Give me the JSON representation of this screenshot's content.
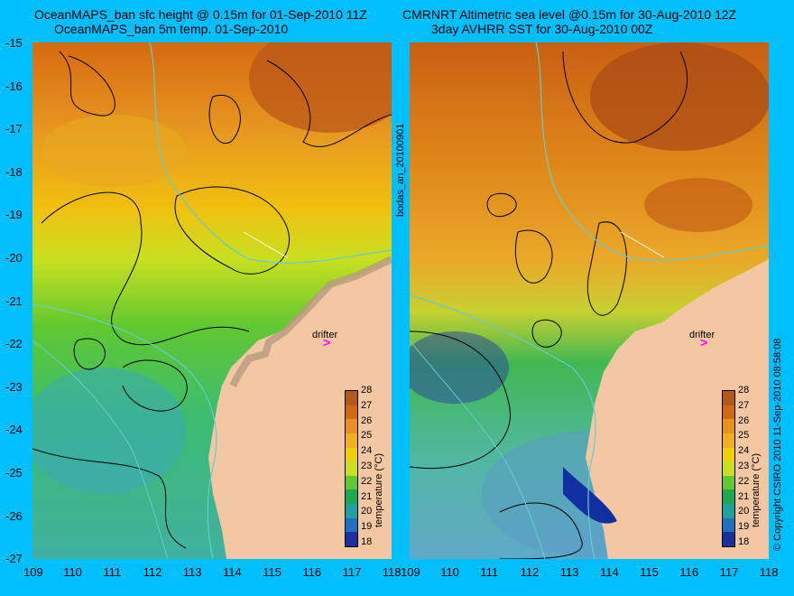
{
  "left_panel": {
    "title_1": "OceanMAPS_ban sfc height @ 0.15m for 01-Sep-2010 11Z",
    "title_2": "OceanMAPS_ban 5m temp. 01-Sep-2010",
    "drifter_label": "drifter",
    "drifter_mark": ">"
  },
  "right_panel": {
    "title_1": "CMRNRT Altimetric sea level  @0.15m  for 30-Aug-2010 12Z",
    "title_2": "3day AVHRR SST for 30-Aug-2010 00Z",
    "drifter_label": "drifter",
    "drifter_mark": ">"
  },
  "side_label": "bodas_an_20100901",
  "copyright": "© Copyright CSIRO 2010   11-Sep-2010 08:58:08",
  "y_ticks": [
    "-15",
    "-16",
    "-17",
    "-18",
    "-19",
    "-20",
    "-21",
    "-22",
    "-23",
    "-24",
    "-25",
    "-26",
    "-27"
  ],
  "x_ticks": [
    "109",
    "110",
    "111",
    "112",
    "113",
    "114",
    "115",
    "116",
    "117",
    "118"
  ],
  "colorbar": {
    "title": "temperature (°C)",
    "labels": [
      "28",
      "27",
      "26",
      "25",
      "24",
      "23",
      "22",
      "21",
      "20",
      "19",
      "18"
    ],
    "colors": [
      "#b35a1a",
      "#d06a10",
      "#e89020",
      "#f0b020",
      "#f0d000",
      "#c8e020",
      "#60c830",
      "#20a850",
      "#20a0a0",
      "#2070c0",
      "#1830a0"
    ]
  },
  "colors": {
    "background": "#00bfff",
    "land": "#f4c7a3",
    "drifter": "#ff00ff",
    "contour": "#000000",
    "bathymetry": "#66cccc"
  }
}
